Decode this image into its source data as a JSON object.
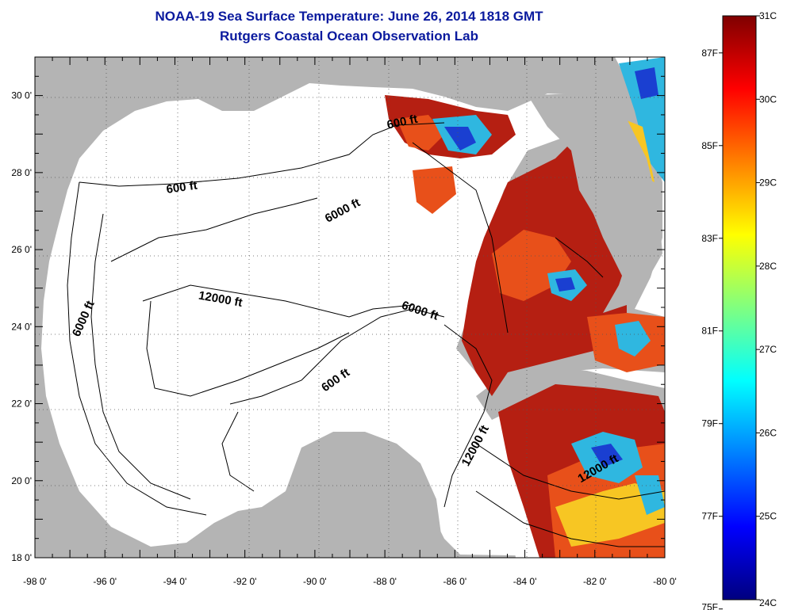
{
  "title": {
    "line1": "NOAA-19 Sea Surface Temperature:  June 26, 2014 1818 GMT",
    "line2": "Rutgers Coastal Ocean Observation Lab"
  },
  "map": {
    "lon_range": [
      -98,
      -80
    ],
    "lat_range": [
      18,
      31
    ],
    "x_ticks": [
      "-98 0'",
      "-96 0'",
      "-94 0'",
      "-92 0'",
      "-90 0'",
      "-88 0'",
      "-86 0'",
      "-84 0'",
      "-82 0'",
      "-80 0'"
    ],
    "y_ticks": [
      "30 0'",
      "28 0'",
      "26 0'",
      "24 0'",
      "22 0'",
      "20 0'",
      "18 0'"
    ],
    "contour_labels": [
      {
        "text": "600 ft",
        "lon": -93.8,
        "lat": 27.6,
        "rot": -8
      },
      {
        "text": "600 ft",
        "lon": -87.5,
        "lat": 29.3,
        "rot": -12
      },
      {
        "text": "6000 ft",
        "lon": -89.2,
        "lat": 27.0,
        "rot": -28
      },
      {
        "text": "6000 ft",
        "lon": -96.6,
        "lat": 24.2,
        "rot": -66
      },
      {
        "text": "12000 ft",
        "lon": -92.7,
        "lat": 24.7,
        "rot": 10
      },
      {
        "text": "6000 ft",
        "lon": -87.0,
        "lat": 24.4,
        "rot": 18
      },
      {
        "text": "600 ft",
        "lon": -89.4,
        "lat": 22.6,
        "rot": -35
      },
      {
        "text": "12000 ft",
        "lon": -85.4,
        "lat": 20.9,
        "rot": -62
      },
      {
        "text": "12000 ft",
        "lon": -81.9,
        "lat": 20.3,
        "rot": -30
      }
    ],
    "colors": {
      "land": "#b4b4b4",
      "ocean": "#ffffff",
      "sst_hot": "#b51f12",
      "sst_warm": "#e8501a",
      "sst_mid": "#f7c623",
      "sst_cool": "#2fb7e0",
      "sst_cold": "#1a3fd1"
    }
  },
  "colorbar": {
    "celsius": [
      "31C",
      "30C",
      "29C",
      "28C",
      "27C",
      "26C",
      "25C",
      "24C"
    ],
    "fahrenheit": [
      "87F",
      "85F",
      "83F",
      "81F",
      "79F",
      "77F",
      "75F"
    ],
    "stops": [
      "#7f0000",
      "#ff0000",
      "#ff8000",
      "#ffff00",
      "#80ff80",
      "#00ffff",
      "#0080ff",
      "#0000ff",
      "#00007f"
    ]
  }
}
